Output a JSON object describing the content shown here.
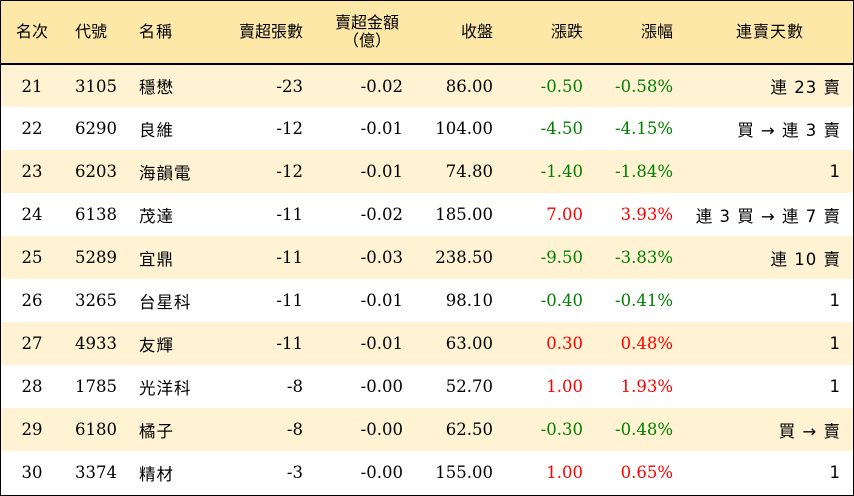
{
  "headers": {
    "rank": "名次",
    "code": "代號",
    "name": "名稱",
    "net_sell_lots": "賣超張數",
    "net_sell_amount_l1": "賣超金額",
    "net_sell_amount_l2": "（億）",
    "close": "收盤",
    "change": "漲跌",
    "change_pct": "漲幅",
    "consecutive_days": "連賣天數"
  },
  "rows": [
    {
      "rank": "21",
      "code": "3105",
      "name": "穩懋",
      "lots": "-23",
      "amount": "-0.02",
      "close": "86.00",
      "change": "-0.50",
      "change_pct": "-0.58%",
      "days": "連 23 賣",
      "dir": "neg"
    },
    {
      "rank": "22",
      "code": "6290",
      "name": "良維",
      "lots": "-12",
      "amount": "-0.01",
      "close": "104.00",
      "change": "-4.50",
      "change_pct": "-4.15%",
      "days": "買 → 連 3 賣",
      "dir": "neg"
    },
    {
      "rank": "23",
      "code": "6203",
      "name": "海韻電",
      "lots": "-12",
      "amount": "-0.01",
      "close": "74.80",
      "change": "-1.40",
      "change_pct": "-1.84%",
      "days": "1",
      "dir": "neg"
    },
    {
      "rank": "24",
      "code": "6138",
      "name": "茂達",
      "lots": "-11",
      "amount": "-0.02",
      "close": "185.00",
      "change": "7.00",
      "change_pct": "3.93%",
      "days": "連 3 買 → 連 7 賣",
      "dir": "pos"
    },
    {
      "rank": "25",
      "code": "5289",
      "name": "宜鼎",
      "lots": "-11",
      "amount": "-0.03",
      "close": "238.50",
      "change": "-9.50",
      "change_pct": "-3.83%",
      "days": "連 10 賣",
      "dir": "neg"
    },
    {
      "rank": "26",
      "code": "3265",
      "name": "台星科",
      "lots": "-11",
      "amount": "-0.01",
      "close": "98.10",
      "change": "-0.40",
      "change_pct": "-0.41%",
      "days": "1",
      "dir": "neg"
    },
    {
      "rank": "27",
      "code": "4933",
      "name": "友輝",
      "lots": "-11",
      "amount": "-0.01",
      "close": "63.00",
      "change": "0.30",
      "change_pct": "0.48%",
      "days": "1",
      "dir": "pos"
    },
    {
      "rank": "28",
      "code": "1785",
      "name": "光洋科",
      "lots": "-8",
      "amount": "-0.00",
      "close": "52.70",
      "change": "1.00",
      "change_pct": "1.93%",
      "days": "1",
      "dir": "pos"
    },
    {
      "rank": "29",
      "code": "6180",
      "name": "橘子",
      "lots": "-8",
      "amount": "-0.00",
      "close": "62.50",
      "change": "-0.30",
      "change_pct": "-0.48%",
      "days": "買 → 賣",
      "dir": "neg"
    },
    {
      "rank": "30",
      "code": "3374",
      "name": "精材",
      "lots": "-3",
      "amount": "-0.00",
      "close": "155.00",
      "change": "1.00",
      "change_pct": "0.65%",
      "days": "1",
      "dir": "pos"
    }
  ],
  "colors": {
    "header_bg": "#fde8a8",
    "stripe_bg": "#fff3d4",
    "up": "#ff0000",
    "down": "#008000"
  }
}
